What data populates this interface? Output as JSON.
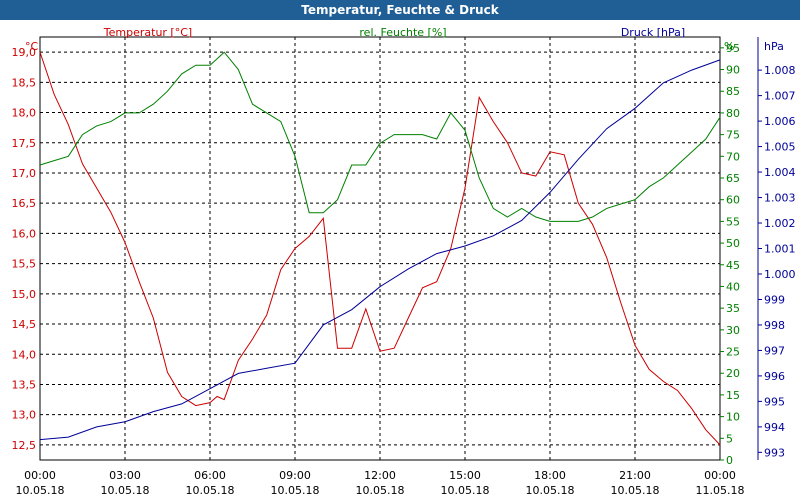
{
  "title": "Temperatur, Feuchte & Druck",
  "chart_data": {
    "type": "line",
    "title": "Temperatur, Feuchte & Druck",
    "grid": true,
    "x_axis": {
      "ticks": [
        {
          "time": "00:00",
          "date": "10.05.18"
        },
        {
          "time": "03:00",
          "date": "10.05.18"
        },
        {
          "time": "06:00",
          "date": "10.05.18"
        },
        {
          "time": "09:00",
          "date": "10.05.18"
        },
        {
          "time": "12:00",
          "date": "10.05.18"
        },
        {
          "time": "15:00",
          "date": "10.05.18"
        },
        {
          "time": "18:00",
          "date": "10.05.18"
        },
        {
          "time": "21:00",
          "date": "10.05.18"
        },
        {
          "time": "00:00",
          "date": "11.05.18"
        }
      ],
      "range_hours": [
        0,
        24
      ]
    },
    "axes": {
      "temperature": {
        "unit": "°C",
        "label": "Temperatur [°C]",
        "min": 12.25,
        "max": 19.25,
        "step": 0.5,
        "color": "#cc0000",
        "tick_labels": [
          "12,5",
          "13,0",
          "13,5",
          "14,0",
          "14,5",
          "15,0",
          "15,5",
          "16,0",
          "16,5",
          "17,0",
          "17,5",
          "18,0",
          "18,5",
          "19,0"
        ]
      },
      "humidity": {
        "unit": "%",
        "label": "rel. Feuchte [%]",
        "min": 0,
        "max": 97.5,
        "step": 5,
        "color": "#008000",
        "tick_labels": [
          "0",
          "5",
          "10",
          "15",
          "20",
          "25",
          "30",
          "35",
          "40",
          "45",
          "50",
          "55",
          "60",
          "65",
          "70",
          "75",
          "80",
          "85",
          "90",
          "95"
        ]
      },
      "pressure": {
        "unit": "hPa",
        "label": "Druck [hPa]",
        "min": 992.7,
        "max": 1009.3,
        "step": 1,
        "color": "#000099",
        "tick_labels": [
          "993",
          "994",
          "995",
          "996",
          "997",
          "998",
          "999",
          "1.000",
          "1.001",
          "1.002",
          "1.003",
          "1.004",
          "1.005",
          "1.006",
          "1.007",
          "1.008"
        ]
      }
    },
    "series": [
      {
        "name": "Temperatur [°C]",
        "axis": "temperature",
        "color": "#cc0000",
        "x": [
          0,
          0.5,
          1,
          1.5,
          2,
          2.5,
          3,
          3.5,
          4,
          4.5,
          5,
          5.5,
          6,
          6.25,
          6.5,
          7,
          7.5,
          8,
          8.5,
          9,
          9.5,
          10,
          10.5,
          11,
          11.5,
          12,
          12.5,
          13,
          13.5,
          14,
          14.5,
          15,
          15.5,
          16,
          16.5,
          17,
          17.5,
          18,
          18.5,
          19,
          19.5,
          20,
          20.5,
          21,
          21.5,
          22,
          22.5,
          23,
          23.5,
          24
        ],
        "y": [
          19.0,
          18.3,
          17.8,
          17.15,
          16.75,
          16.35,
          15.85,
          15.2,
          14.6,
          13.7,
          13.3,
          13.15,
          13.2,
          13.3,
          13.25,
          13.9,
          14.25,
          14.65,
          15.4,
          15.75,
          15.95,
          16.25,
          14.1,
          14.1,
          14.75,
          14.05,
          14.1,
          14.6,
          15.1,
          15.2,
          15.75,
          16.75,
          18.25,
          17.85,
          17.5,
          17.0,
          16.95,
          17.35,
          17.3,
          16.5,
          16.15,
          15.6,
          14.85,
          14.15,
          13.75,
          13.55,
          13.4,
          13.1,
          12.75,
          12.5
        ]
      },
      {
        "name": "rel. Feuchte [%]",
        "axis": "humidity",
        "color": "#008000",
        "x": [
          0,
          0.5,
          1,
          1.5,
          2,
          2.5,
          3,
          3.5,
          4,
          4.5,
          5,
          5.5,
          6,
          6.5,
          7,
          7.5,
          8,
          8.5,
          9,
          9.5,
          10,
          10.5,
          11,
          11.5,
          12,
          12.5,
          13,
          13.5,
          14,
          14.5,
          15,
          15.5,
          16,
          16.5,
          17,
          17.5,
          18,
          18.5,
          19,
          19.5,
          20,
          20.5,
          21,
          21.5,
          22,
          22.5,
          23,
          23.5,
          24
        ],
        "y": [
          68,
          69,
          70,
          75,
          77,
          78,
          80,
          80,
          82,
          85,
          89,
          91,
          91,
          94,
          90,
          82,
          80,
          78,
          70,
          57,
          57,
          60,
          68,
          68,
          73,
          75,
          75,
          75,
          74,
          80,
          76,
          65,
          58,
          56,
          58,
          56,
          55,
          55,
          55,
          56,
          58,
          59,
          60,
          63,
          65,
          68,
          71,
          74,
          79
        ]
      },
      {
        "name": "Druck [hPa]",
        "axis": "pressure",
        "color": "#000099",
        "x": [
          0,
          1,
          2,
          3,
          4,
          5,
          6,
          7,
          8,
          9,
          10,
          11,
          12,
          13,
          14,
          15,
          16,
          17,
          18,
          19,
          20,
          21,
          22,
          23,
          24
        ],
        "y": [
          993.5,
          993.6,
          994.0,
          994.2,
          994.6,
          994.9,
          995.5,
          996.1,
          996.3,
          996.5,
          998.0,
          998.6,
          999.5,
          1000.2,
          1000.8,
          1001.1,
          1001.5,
          1002.1,
          1003.2,
          1004.5,
          1005.7,
          1006.5,
          1007.5,
          1008.0,
          1008.4
        ]
      }
    ]
  }
}
